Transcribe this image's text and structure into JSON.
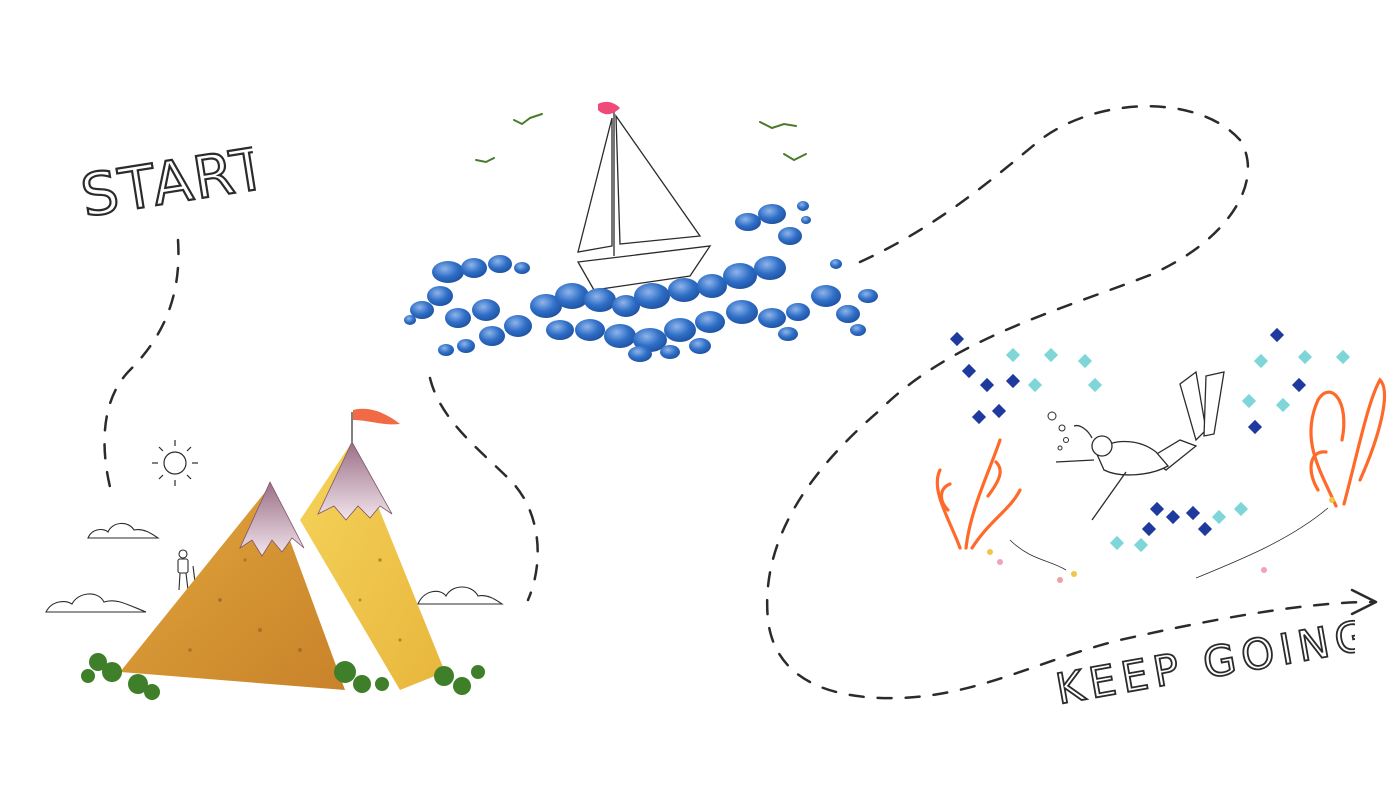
{
  "labels": {
    "start": "START",
    "keep_going": "KEEP GOING!"
  },
  "colors": {
    "background": "#ffffff",
    "ink": "#2b2b2b",
    "petal_blue": "#2f6fc7",
    "chip_orange": "#d9962e",
    "chip_yellow": "#f0c64a",
    "onion_pink": "#b88ca0",
    "leaf_green": "#3f7f2a",
    "yarn_orange": "#ff6a2a",
    "bead_navy": "#1f3a9e",
    "bead_aqua": "#7fd6d8"
  },
  "scenes": [
    {
      "name": "mountain-scene"
    },
    {
      "name": "sailboat-scene"
    },
    {
      "name": "diver-scene"
    }
  ]
}
